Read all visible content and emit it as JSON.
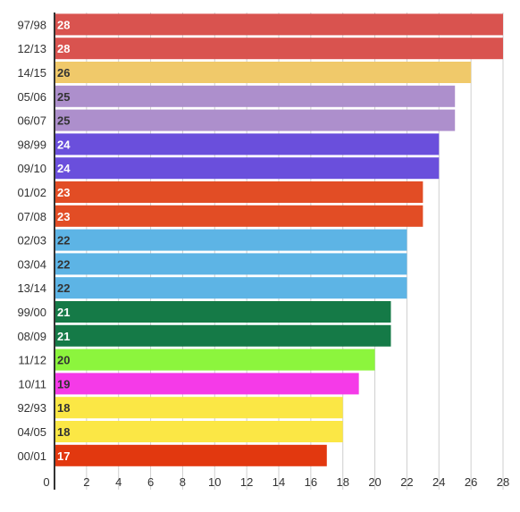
{
  "chart_data": {
    "type": "bar",
    "orientation": "horizontal",
    "title": "",
    "xlabel": "",
    "ylabel": "",
    "xlim": [
      0,
      28
    ],
    "x_ticks": [
      0,
      2,
      4,
      6,
      8,
      10,
      12,
      14,
      16,
      18,
      20,
      22,
      24,
      26,
      28
    ],
    "grid": true,
    "legend": "none",
    "bars": [
      {
        "category": "97/98",
        "value": 28,
        "color": "#d9534f",
        "label_color": "#ffffff"
      },
      {
        "category": "12/13",
        "value": 28,
        "color": "#d9534f",
        "label_color": "#ffffff"
      },
      {
        "category": "14/15",
        "value": 26,
        "color": "#f0c96a",
        "label_color": "#333333"
      },
      {
        "category": "05/06",
        "value": 25,
        "color": "#ad8fcc",
        "label_color": "#333333"
      },
      {
        "category": "06/07",
        "value": 25,
        "color": "#ad8fcc",
        "label_color": "#333333"
      },
      {
        "category": "98/99",
        "value": 24,
        "color": "#6a4fdc",
        "label_color": "#ffffff"
      },
      {
        "category": "09/10",
        "value": 24,
        "color": "#6a4fdc",
        "label_color": "#ffffff"
      },
      {
        "category": "01/02",
        "value": 23,
        "color": "#e24d25",
        "label_color": "#ffffff"
      },
      {
        "category": "07/08",
        "value": 23,
        "color": "#e24d25",
        "label_color": "#ffffff"
      },
      {
        "category": "02/03",
        "value": 22,
        "color": "#5db4e5",
        "label_color": "#333333"
      },
      {
        "category": "03/04",
        "value": 22,
        "color": "#5db4e5",
        "label_color": "#333333"
      },
      {
        "category": "13/14",
        "value": 22,
        "color": "#5db4e5",
        "label_color": "#333333"
      },
      {
        "category": "99/00",
        "value": 21,
        "color": "#157a47",
        "label_color": "#ffffff"
      },
      {
        "category": "08/09",
        "value": 21,
        "color": "#157a47",
        "label_color": "#ffffff"
      },
      {
        "category": "11/12",
        "value": 20,
        "color": "#8cf53d",
        "label_color": "#333333"
      },
      {
        "category": "10/11",
        "value": 19,
        "color": "#f53ae8",
        "label_color": "#333333"
      },
      {
        "category": "92/93",
        "value": 18,
        "color": "#fbe745",
        "label_color": "#333333"
      },
      {
        "category": "04/05",
        "value": 18,
        "color": "#fbe745",
        "label_color": "#333333"
      },
      {
        "category": "00/01",
        "value": 17,
        "color": "#e2380f",
        "label_color": "#ffffff"
      }
    ]
  }
}
